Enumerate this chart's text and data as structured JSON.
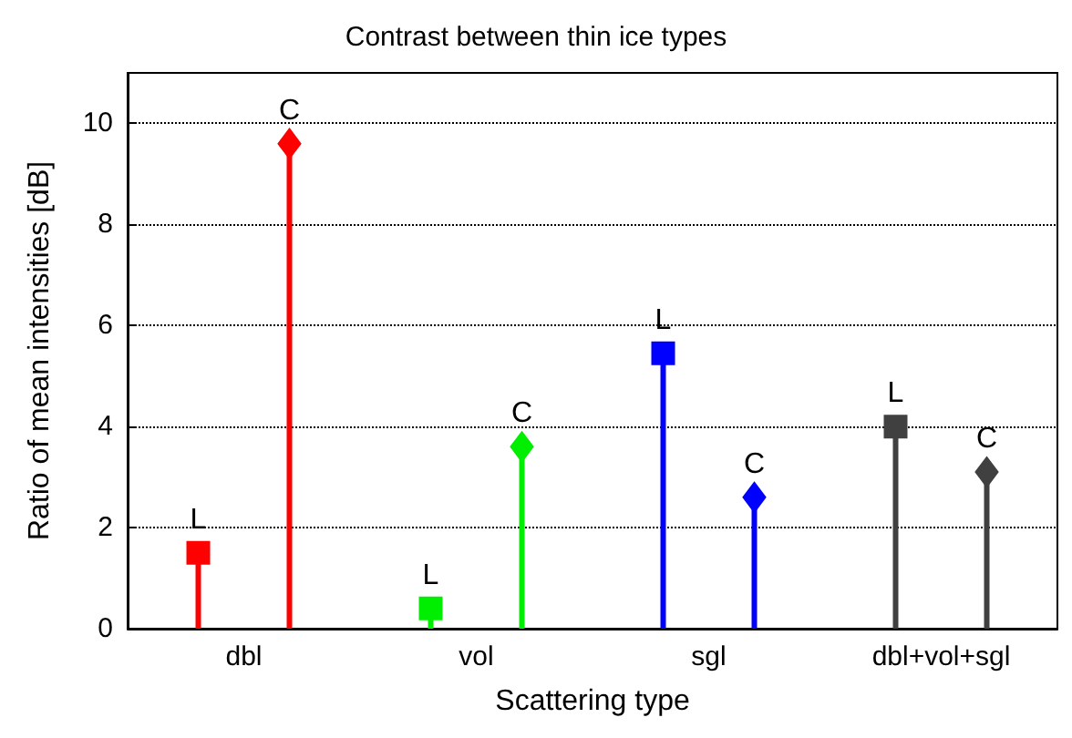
{
  "chart_data": {
    "type": "lollipop",
    "title": "Contrast between thin ice types",
    "xlabel": "Scattering type",
    "ylabel": "Ratio of mean intensities [dB]",
    "categories": [
      "dbl",
      "vol",
      "sgl",
      "dbl+vol+sgl"
    ],
    "series": [
      {
        "name": "L",
        "marker": "square",
        "colors": [
          "#ff0000",
          "#00ee00",
          "#0000ff",
          "#404040"
        ],
        "values": [
          1.5,
          0.4,
          5.45,
          4.0
        ]
      },
      {
        "name": "C",
        "marker": "diamond",
        "colors": [
          "#ff0000",
          "#00ee00",
          "#0000ff",
          "#404040"
        ],
        "values": [
          9.6,
          3.6,
          2.6,
          3.1
        ]
      }
    ],
    "ylim": [
      0,
      11
    ],
    "yticks": [
      0,
      2,
      4,
      6,
      8,
      10
    ],
    "grid": "y",
    "legend": false
  }
}
